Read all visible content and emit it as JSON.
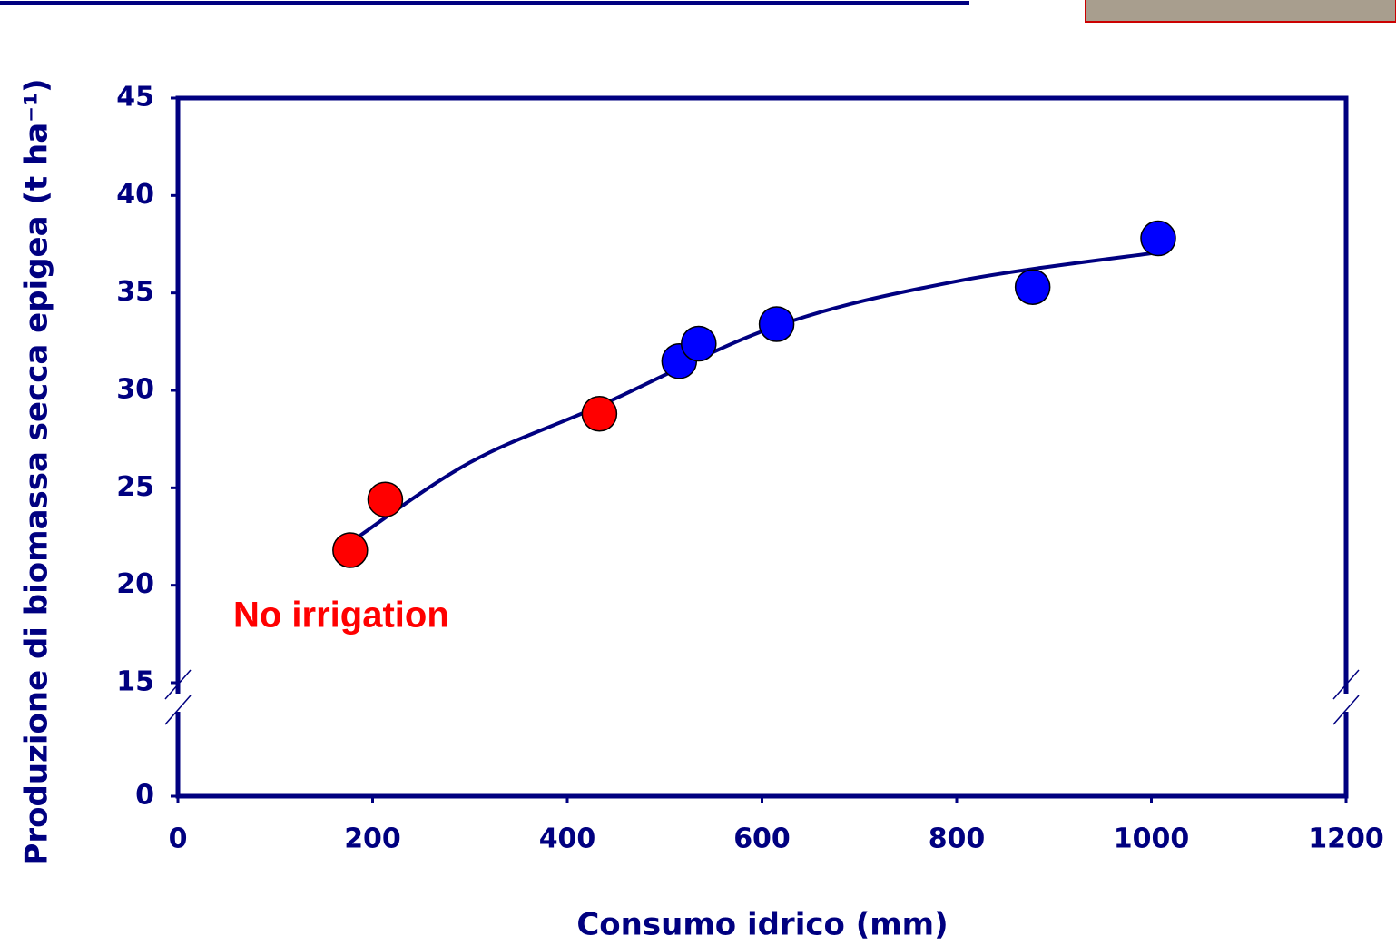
{
  "chart_data": {
    "type": "scatter",
    "ylabel": "Produzione di biomassa secca epigea (t ha⁻¹)",
    "xlabel": "Consumo idrico (mm)",
    "annotation": "No irrigation",
    "annotation_color": "#ff0000",
    "series": [
      {
        "color": "#ff0000",
        "x": [
          177,
          213,
          433
        ],
        "values": [
          21.8,
          24.4,
          28.8
        ]
      },
      {
        "color": "#0000ff",
        "x": [
          515,
          535,
          615,
          878,
          1007
        ],
        "values": [
          31.5,
          32.4,
          33.4,
          35.3,
          37.8
        ]
      }
    ],
    "trend": {
      "color": "#000080",
      "x": [
        177,
        300,
        433,
        615,
        800,
        1010
      ],
      "values": [
        22.2,
        26.3,
        29.2,
        33.3,
        35.6,
        37.1
      ]
    },
    "xlim": [
      0,
      1200
    ],
    "xticks": [
      0,
      200,
      400,
      600,
      800,
      1000,
      1200
    ],
    "ylim": [
      0,
      45
    ],
    "yticks": [
      0,
      15,
      20,
      25,
      30,
      35,
      40,
      45
    ],
    "y_break": 15
  }
}
